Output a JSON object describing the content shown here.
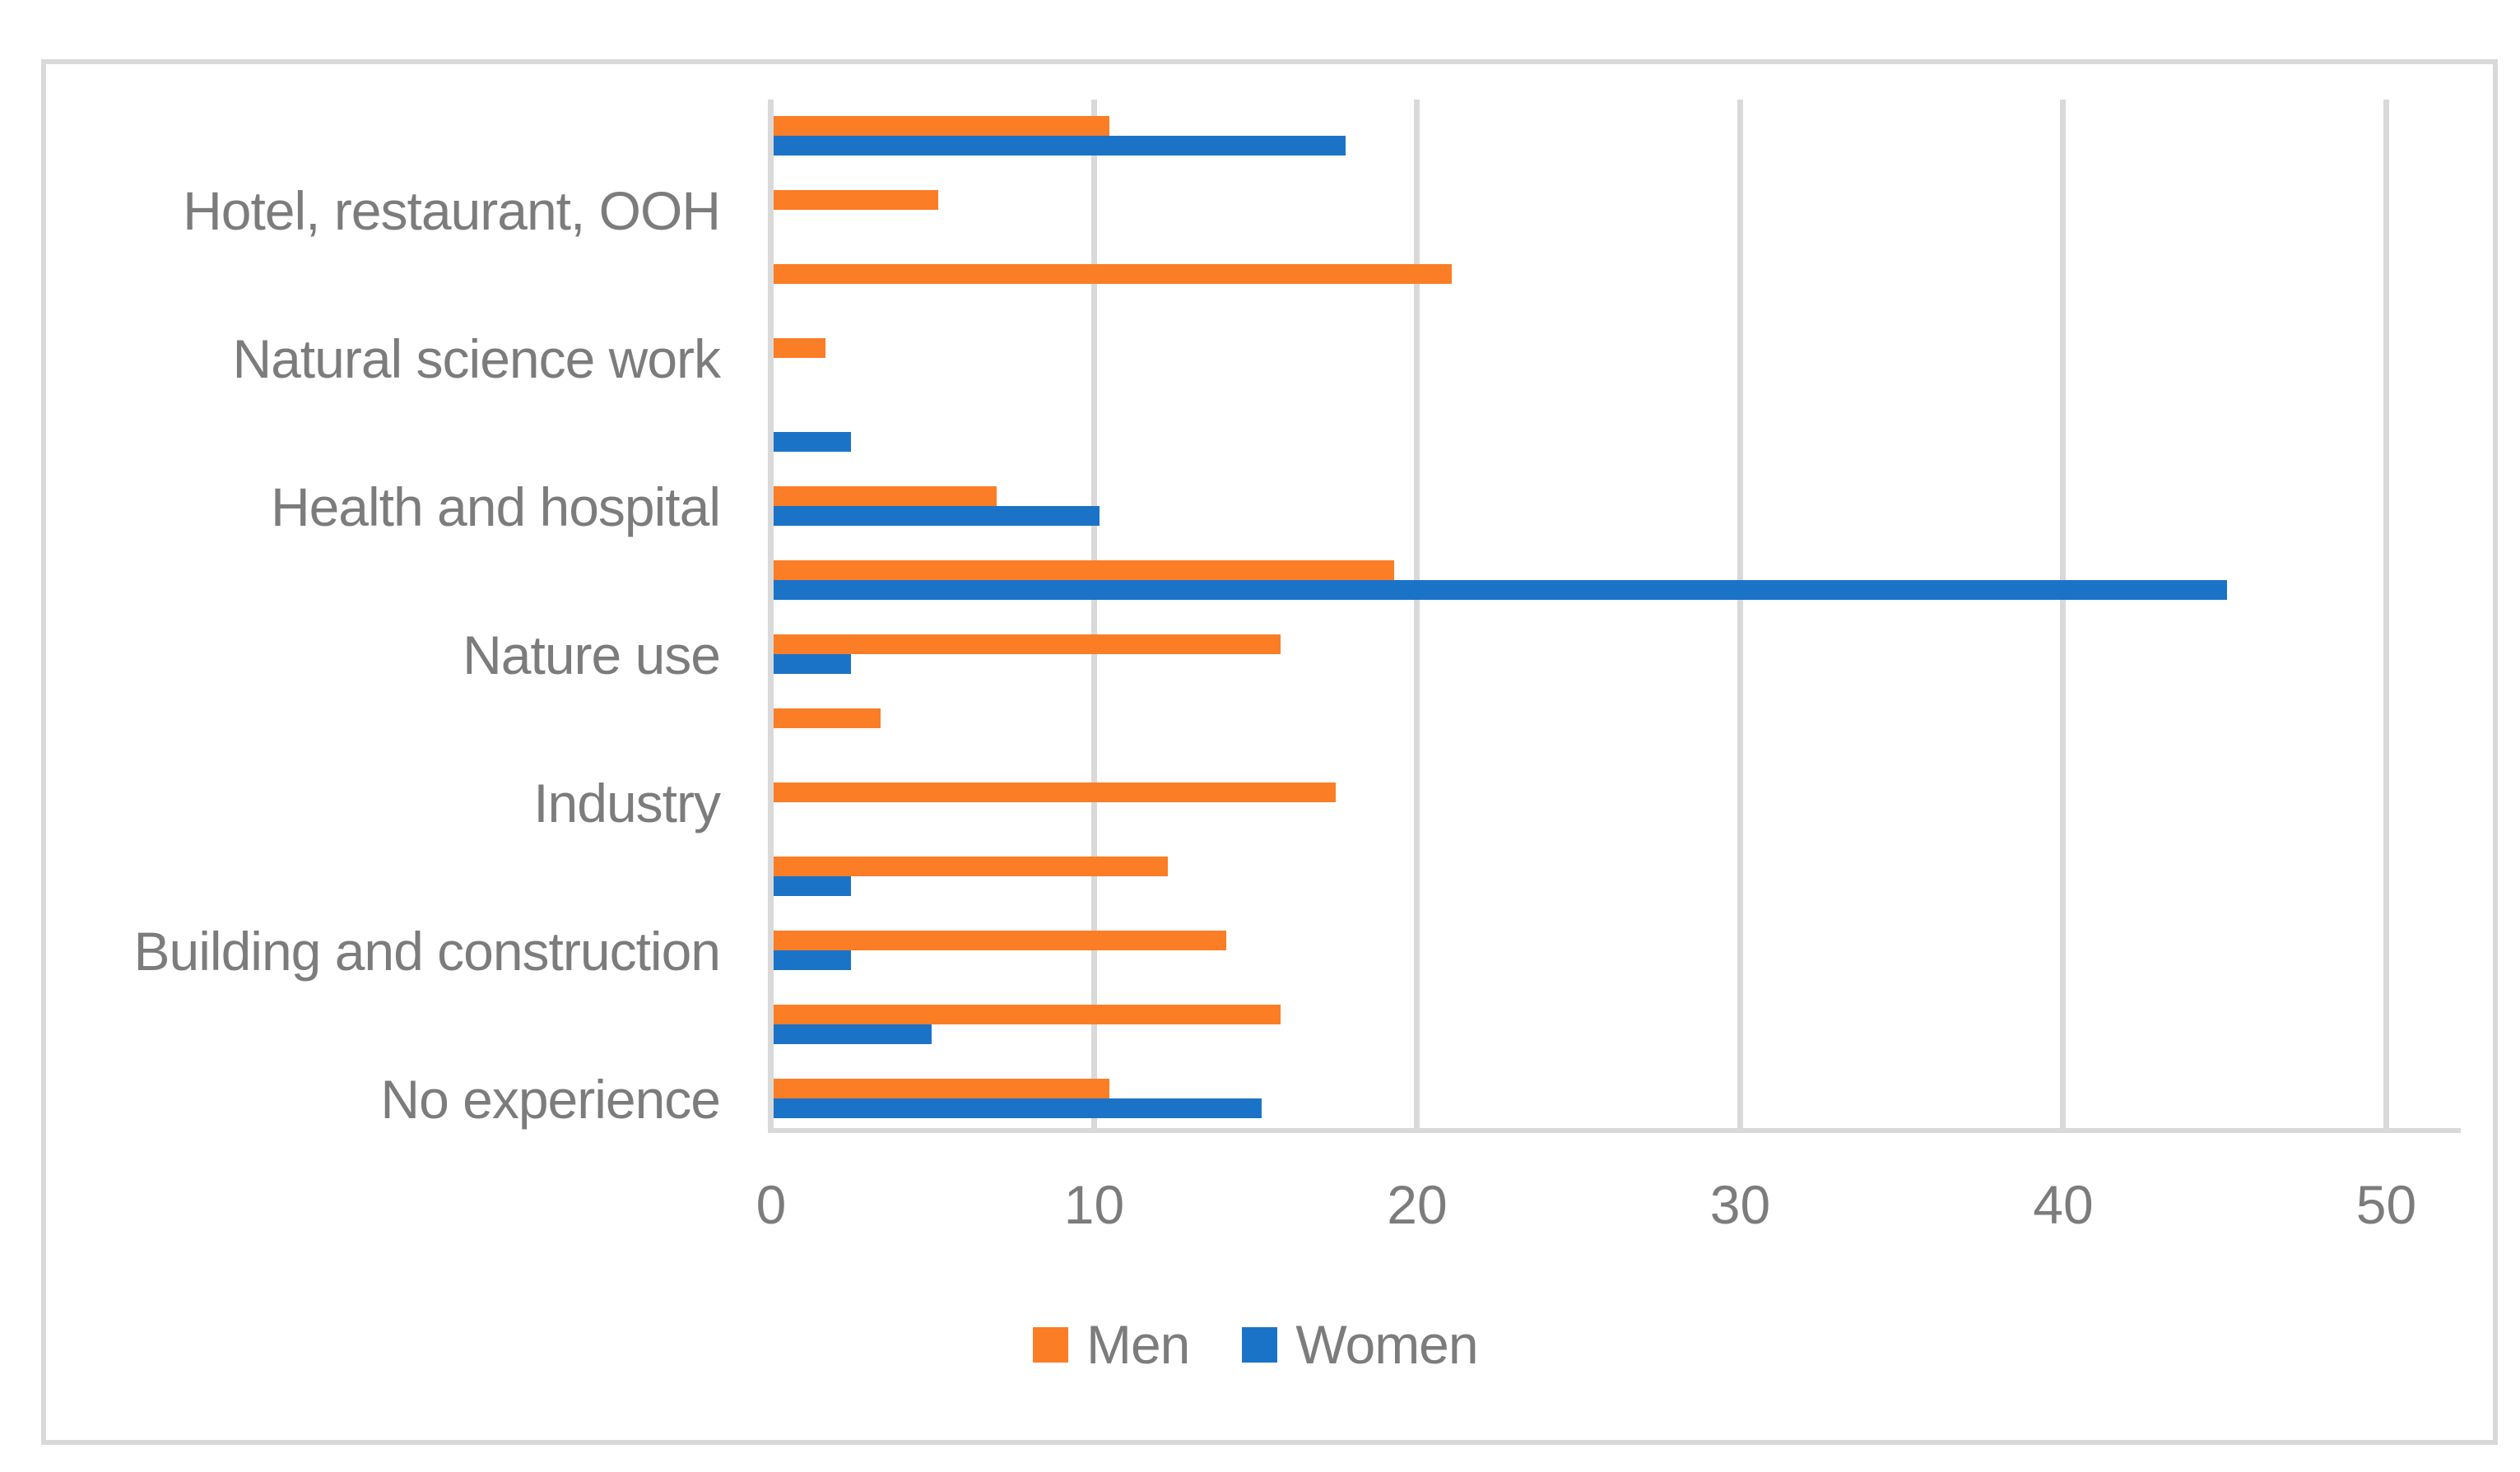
{
  "figure": {
    "background": "#ffffff",
    "border_color": "#D9D9D9",
    "text_color": "#7C7C7C",
    "gridline_color": "#D9D9D9"
  },
  "chart_data": {
    "type": "bar",
    "orientation": "horizontal",
    "title": "",
    "xlabel": "",
    "ylabel": "",
    "xlim": [
      0,
      50
    ],
    "x_ticks": [
      0,
      10,
      20,
      30,
      40,
      50
    ],
    "grid": "vertical-major",
    "legend_position": "bottom-center",
    "category_label_note": "labels shown only on every second row",
    "series": [
      {
        "name": "Men",
        "color": "#FB7D26"
      },
      {
        "name": "Women",
        "color": "#1B73C8"
      }
    ],
    "groups": [
      {
        "label": "",
        "men": 10.4,
        "women": 17.7
      },
      {
        "label": "Hotel, restaurant, OOH",
        "men": 5.1,
        "women": 0
      },
      {
        "label": "",
        "men": 21.0,
        "women": 0
      },
      {
        "label": "Natural science work",
        "men": 1.6,
        "women": 0
      },
      {
        "label": "",
        "men": 0,
        "women": 2.4
      },
      {
        "label": "Health and hospital",
        "men": 6.9,
        "women": 10.1
      },
      {
        "label": "",
        "men": 19.2,
        "women": 45.0
      },
      {
        "label": "Nature use",
        "men": 15.7,
        "women": 2.4
      },
      {
        "label": "",
        "men": 3.3,
        "women": 0
      },
      {
        "label": "Industry",
        "men": 17.4,
        "women": 0
      },
      {
        "label": "",
        "men": 12.2,
        "women": 2.4
      },
      {
        "label": "Building and construction",
        "men": 14.0,
        "women": 2.4
      },
      {
        "label": "",
        "men": 15.7,
        "women": 4.9
      },
      {
        "label": "No experience",
        "men": 10.4,
        "women": 15.1
      }
    ]
  }
}
